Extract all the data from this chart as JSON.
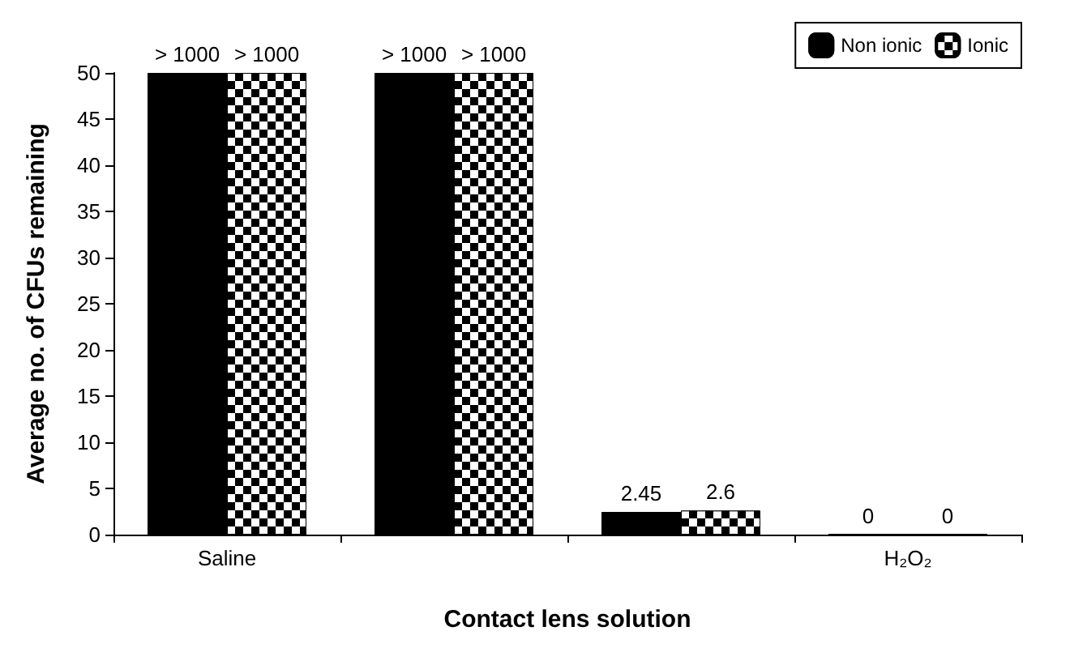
{
  "chart_data": {
    "type": "bar",
    "xlabel": "Contact lens solution",
    "ylabel": "Average no. of CFUs remaining",
    "categories": [
      "Saline",
      null,
      null,
      "H₂O₂"
    ],
    "series": [
      {
        "name": "Non ionic",
        "color": "#000000",
        "values": [
          50,
          50,
          2.45,
          0
        ],
        "value_labels": [
          "> 1000",
          "> 1000",
          "2.45",
          "0"
        ]
      },
      {
        "name": "Ionic",
        "color": "#000000",
        "values": [
          50,
          50,
          2.6,
          0
        ],
        "value_labels": [
          "> 1000",
          "> 1000",
          "2.6",
          "0"
        ]
      }
    ],
    "ylim": [
      0,
      50
    ],
    "yticks": [
      0,
      5,
      10,
      15,
      20,
      25,
      30,
      35,
      40,
      45,
      50
    ],
    "grid": false,
    "legend": "top right"
  }
}
